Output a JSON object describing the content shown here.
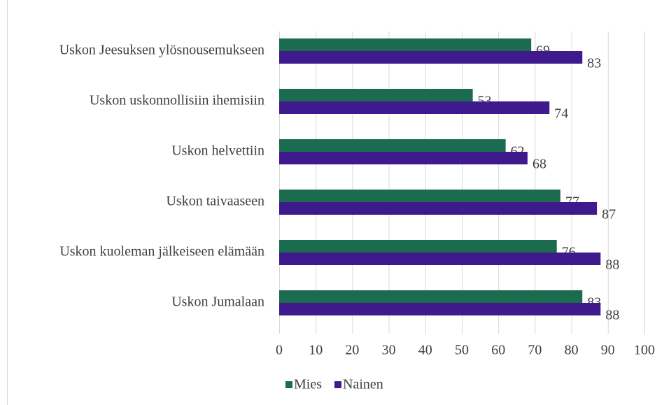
{
  "chart_data": {
    "type": "bar",
    "orientation": "horizontal",
    "categories": [
      "Uskon Jeesuksen ylösnousemukseen",
      "Uskon uskonnollisiin ihemisiin",
      "Uskon helvettiin",
      "Uskon taivaaseen",
      "Uskon kuoleman jälkeiseen elämään",
      "Uskon Jumalaan"
    ],
    "series": [
      {
        "name": "Mies",
        "color": "#1b6b4f",
        "values": [
          69,
          53,
          62,
          77,
          76,
          83
        ]
      },
      {
        "name": "Nainen",
        "color": "#3e1a8c",
        "values": [
          83,
          74,
          68,
          87,
          88,
          88
        ]
      }
    ],
    "xlim": [
      0,
      100
    ],
    "xticks": [
      0,
      10,
      20,
      30,
      40,
      50,
      60,
      70,
      80,
      90,
      100
    ],
    "grid": true,
    "legend": "bottom"
  }
}
